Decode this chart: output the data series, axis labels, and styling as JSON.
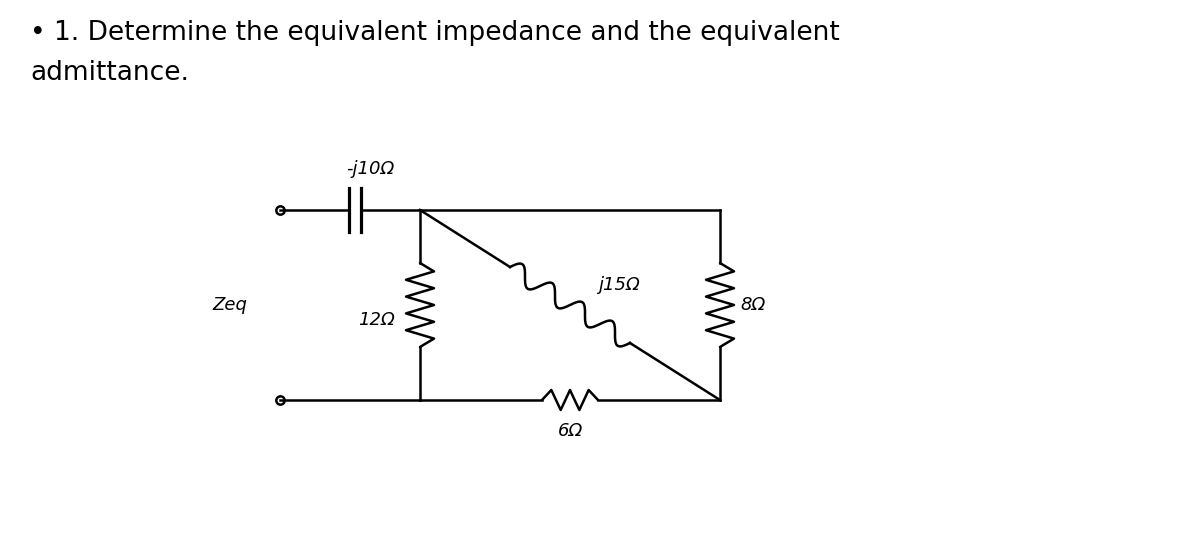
{
  "title_line1": "• 1. Determine the equivalent impedance and the equivalent",
  "title_line2": "admittance.",
  "title_fontsize": 19,
  "title_color": "#000000",
  "bg_color": "#ffffff",
  "circuit": {
    "cap_label": "-j10Ω",
    "res12_label": "12Ω",
    "res8_label": "8Ω",
    "ind_label": "j15Ω",
    "res6_label": "6Ω",
    "zeq_label": "Zeq"
  }
}
